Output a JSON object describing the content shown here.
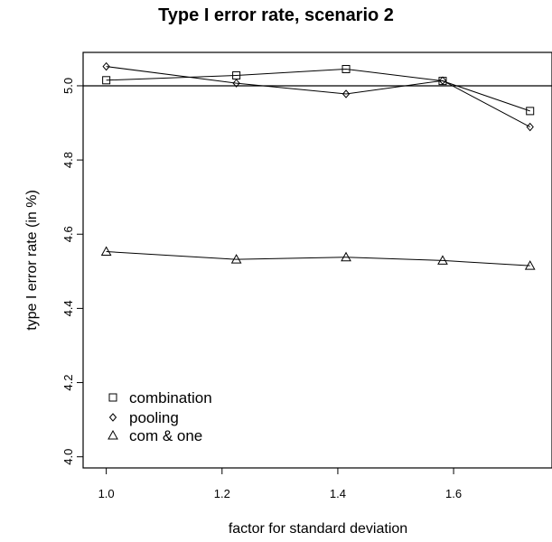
{
  "chart_data": {
    "type": "line",
    "title": "Type I error rate, scenario 2",
    "xlabel": "factor for standard deviation",
    "ylabel": "type I error rate (in %)",
    "xlim": [
      0.96,
      1.77
    ],
    "ylim": [
      3.97,
      5.09
    ],
    "x": [
      1.0,
      1.2247,
      1.4142,
      1.5811,
      1.7321
    ],
    "xticks": [
      1.0,
      1.2,
      1.4,
      1.6
    ],
    "xtick_labels": [
      "1.0",
      "1.2",
      "1.4",
      "1.6"
    ],
    "yticks": [
      4.0,
      4.2,
      4.4,
      4.6,
      4.8,
      5.0
    ],
    "ytick_labels": [
      "4.0",
      "4.2",
      "4.4",
      "4.6",
      "4.8",
      "5.0"
    ],
    "reference_line": 5.0,
    "grid": false,
    "legend_position": "bottom-left",
    "series": [
      {
        "name": "combination",
        "marker": "square",
        "values": [
          5.015,
          5.028,
          5.045,
          5.013,
          4.932
        ]
      },
      {
        "name": "pooling",
        "marker": "diamond",
        "values": [
          5.052,
          5.007,
          4.978,
          5.014,
          4.889
        ]
      },
      {
        "name": "com & one",
        "marker": "triangle",
        "values": [
          4.553,
          4.532,
          4.538,
          4.529,
          4.515
        ]
      }
    ]
  }
}
